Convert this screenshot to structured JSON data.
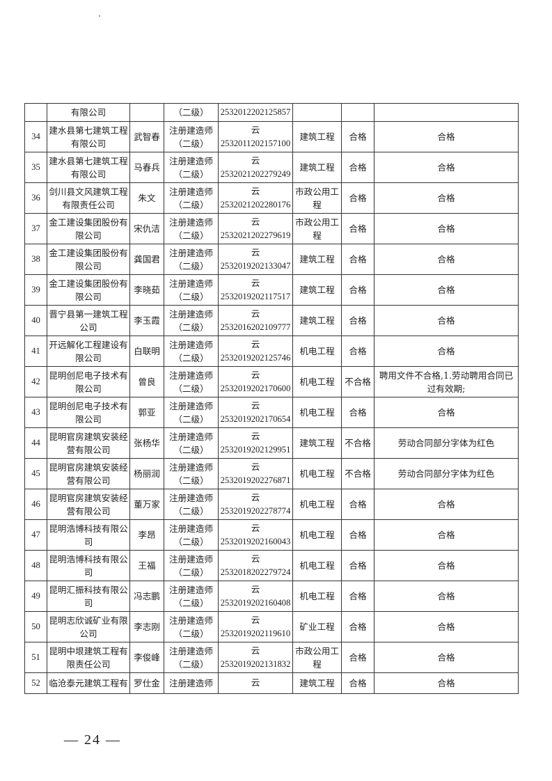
{
  "top_continuation": {
    "company": "有限公司",
    "name": "",
    "qualification": "（二级）",
    "cert": "2532012202125857",
    "major": "",
    "result": "",
    "remark": ""
  },
  "rows": [
    {
      "no": "34",
      "company": "建水县第七建筑工程有限公司",
      "name": "武智春",
      "qualification": "注册建造师（二级）",
      "cert_prefix": "云",
      "cert": "2532011202157100",
      "major": "建筑工程",
      "result": "合格",
      "remark": "合格"
    },
    {
      "no": "35",
      "company": "建水县第七建筑工程有限公司",
      "name": "马春兵",
      "qualification": "注册建造师（二级）",
      "cert_prefix": "云",
      "cert": "2532021202279249",
      "major": "建筑工程",
      "result": "合格",
      "remark": "合格"
    },
    {
      "no": "36",
      "company": "剑川县文风建筑工程有限责任公司",
      "name": "朱文",
      "qualification": "注册建造师（二级）",
      "cert_prefix": "云",
      "cert": "2532021202280176",
      "major": "市政公用工程",
      "result": "合格",
      "remark": "合格"
    },
    {
      "no": "37",
      "company": "金工建设集团股份有限公司",
      "name": "宋仇洁",
      "qualification": "注册建造师（二级）",
      "cert_prefix": "云",
      "cert": "2532021202279619",
      "major": "市政公用工程",
      "result": "合格",
      "remark": "合格"
    },
    {
      "no": "38",
      "company": "金工建设集团股份有限公司",
      "name": "龚国君",
      "qualification": "注册建造师（二级）",
      "cert_prefix": "云",
      "cert": "2532019202133047",
      "major": "建筑工程",
      "result": "合格",
      "remark": "合格"
    },
    {
      "no": "39",
      "company": "金工建设集团股份有限公司",
      "name": "李晓茹",
      "qualification": "注册建造师（二级）",
      "cert_prefix": "云",
      "cert": "2532019202117517",
      "major": "建筑工程",
      "result": "合格",
      "remark": "合格"
    },
    {
      "no": "40",
      "company": "晋宁县第一建筑工程公司",
      "name": "李玉霞",
      "qualification": "注册建造师（二级）",
      "cert_prefix": "云",
      "cert": "2532016202109777",
      "major": "建筑工程",
      "result": "合格",
      "remark": "合格"
    },
    {
      "no": "41",
      "company": "开远解化工程建设有限公司",
      "name": "白联明",
      "qualification": "注册建造师（二级）",
      "cert_prefix": "云",
      "cert": "2532019202125746",
      "major": "机电工程",
      "result": "合格",
      "remark": "合格"
    },
    {
      "no": "42",
      "company": "昆明创尼电子技术有限公司",
      "name": "曾良",
      "qualification": "注册建造师（二级）",
      "cert_prefix": "云",
      "cert": "2532019202170600",
      "major": "机电工程",
      "result": "不合格",
      "remark": "聘用文件不合格,1.劳动聘用合同已过有效期;"
    },
    {
      "no": "43",
      "company": "昆明创尼电子技术有限公司",
      "name": "郭亚",
      "qualification": "注册建造师（二级）",
      "cert_prefix": "云",
      "cert": "2532019202170654",
      "major": "机电工程",
      "result": "合格",
      "remark": "合格"
    },
    {
      "no": "44",
      "company": "昆明官房建筑安装经营有限公司",
      "name": "张杨华",
      "qualification": "注册建造师（二级）",
      "cert_prefix": "云",
      "cert": "2532019202129951",
      "major": "建筑工程",
      "result": "不合格",
      "remark": "劳动合同部分字体为红色"
    },
    {
      "no": "45",
      "company": "昆明官房建筑安装经营有限公司",
      "name": "杨丽润",
      "qualification": "注册建造师（二级）",
      "cert_prefix": "云",
      "cert": "2532019202276871",
      "major": "机电工程",
      "result": "不合格",
      "remark": "劳动合同部分字体为红色"
    },
    {
      "no": "46",
      "company": "昆明官房建筑安装经营有限公司",
      "name": "董万家",
      "qualification": "注册建造师（二级）",
      "cert_prefix": "云",
      "cert": "2532019202278774",
      "major": "机电工程",
      "result": "合格",
      "remark": "合格"
    },
    {
      "no": "47",
      "company": "昆明浩博科技有限公司",
      "name": "李昂",
      "qualification": "注册建造师（二级）",
      "cert_prefix": "云",
      "cert": "2532019202160043",
      "major": "机电工程",
      "result": "合格",
      "remark": "合格"
    },
    {
      "no": "48",
      "company": "昆明浩博科技有限公司",
      "name": "王福",
      "qualification": "注册建造师（二级）",
      "cert_prefix": "云",
      "cert": "2532018202279724",
      "major": "机电工程",
      "result": "合格",
      "remark": "合格"
    },
    {
      "no": "49",
      "company": "昆明汇振科技有限公司",
      "name": "冯志鹏",
      "qualification": "注册建造师（二级）",
      "cert_prefix": "云",
      "cert": "2532019202160408",
      "major": "机电工程",
      "result": "合格",
      "remark": "合格"
    },
    {
      "no": "50",
      "company": "昆明志欣诚矿业有限公司",
      "name": "李志刚",
      "qualification": "注册建造师（二级）",
      "cert_prefix": "云",
      "cert": "2532019202119610",
      "major": "矿业工程",
      "result": "合格",
      "remark": "合格"
    },
    {
      "no": "51",
      "company": "昆明中垠建筑工程有限责任公司",
      "name": "李俊峰",
      "qualification": "注册建造师（二级）",
      "cert_prefix": "云",
      "cert": "2532019202131832",
      "major": "市政公用工程",
      "result": "合格",
      "remark": "合格"
    }
  ],
  "bottom_partial": {
    "no": "52",
    "company": "临沧泰元建筑工程有",
    "name": "罗仕金",
    "qualification": "注册建造师",
    "cert_prefix": "云",
    "major": "建筑工程",
    "result": "合格",
    "remark": "合格"
  },
  "page_number": "— 24 —"
}
